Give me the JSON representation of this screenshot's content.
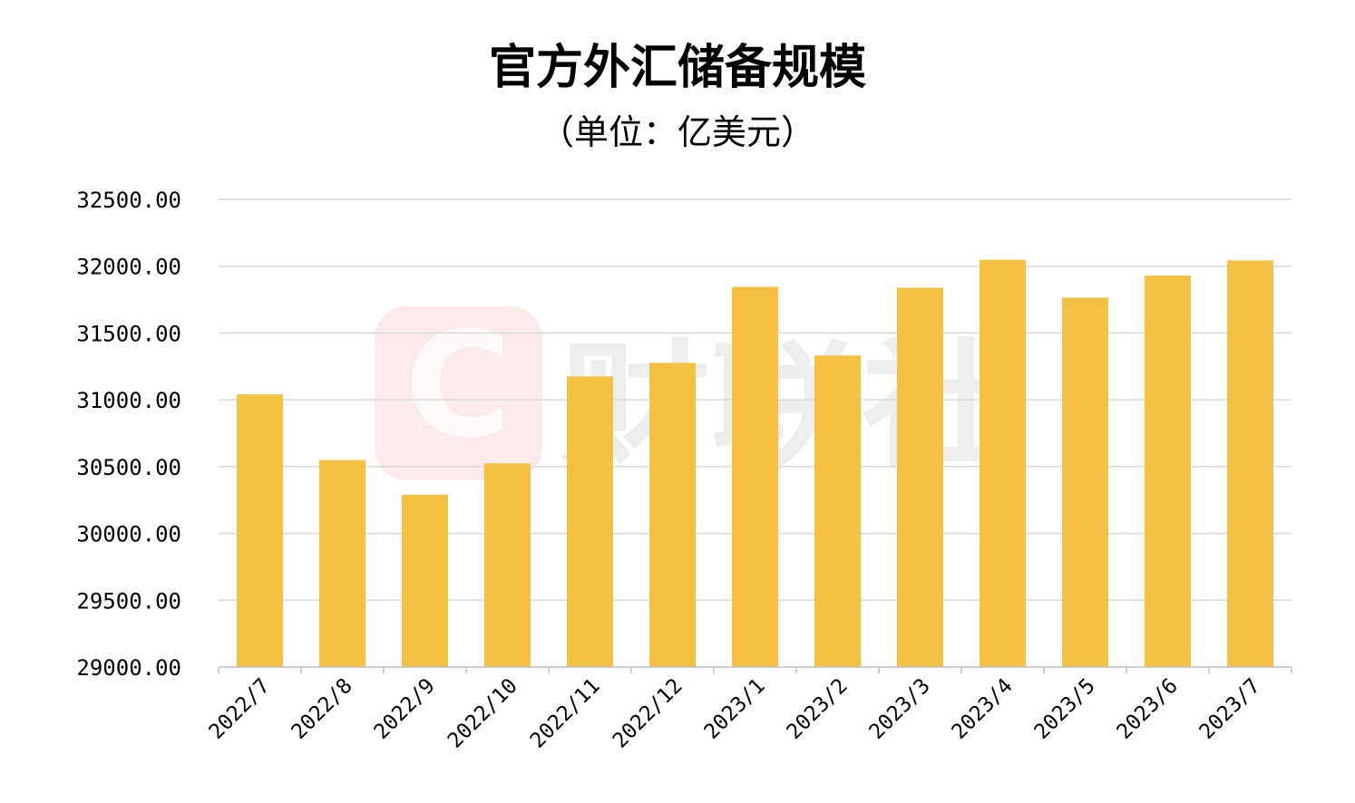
{
  "title": "官方外汇储备规模",
  "subtitle": "（单位：亿美元）",
  "watermark": {
    "text": "财联社",
    "logo_letter": "C"
  },
  "chart_data": {
    "type": "bar",
    "title": "官方外汇储备规模",
    "subtitle": "（单位：亿美元）",
    "categories": [
      "2022/7",
      "2022/8",
      "2022/9",
      "2022/10",
      "2022/11",
      "2022/12",
      "2023/1",
      "2023/2",
      "2023/3",
      "2023/4",
      "2023/5",
      "2023/6",
      "2023/7"
    ],
    "values": [
      31041,
      30549,
      30290,
      30524,
      31175,
      31277,
      31845,
      31332,
      31839,
      32048,
      31765,
      31930,
      32043
    ],
    "ylim": [
      29000,
      32500
    ],
    "yticks": [
      "29000.00",
      "29500.00",
      "30000.00",
      "30500.00",
      "31000.00",
      "31500.00",
      "32000.00",
      "32500.00"
    ],
    "ytick_values": [
      29000,
      29500,
      30000,
      30500,
      31000,
      31500,
      32000,
      32500
    ],
    "bar_color": "#F5C142",
    "grid_color": "#d9d9d9",
    "grid": true,
    "legend": "none"
  }
}
